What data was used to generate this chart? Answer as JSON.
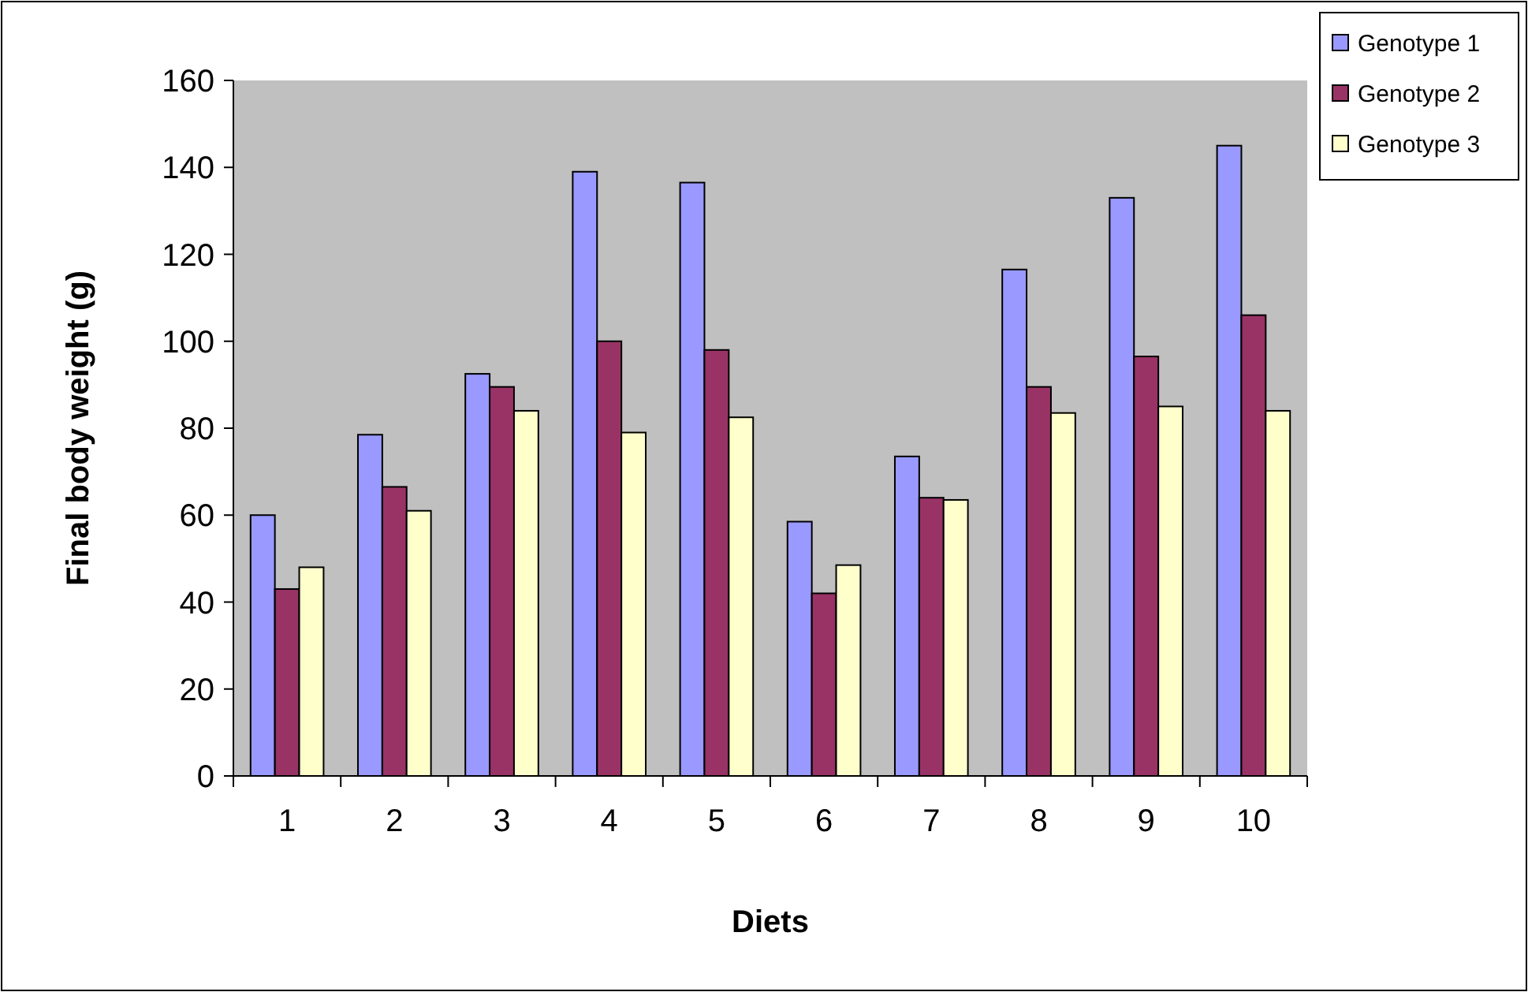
{
  "chart_data": {
    "type": "bar",
    "xlabel": "Diets",
    "ylabel": "Final body weight (g)",
    "categories": [
      "1",
      "2",
      "3",
      "4",
      "5",
      "6",
      "7",
      "8",
      "9",
      "10"
    ],
    "series": [
      {
        "name": "Genotype 1",
        "color": "#9999ff",
        "values": [
          60,
          78.5,
          92.5,
          139,
          136.5,
          58.5,
          73.5,
          116.5,
          133,
          145
        ]
      },
      {
        "name": "Genotype 2",
        "color": "#993366",
        "values": [
          43,
          66.5,
          89.5,
          100,
          98,
          42,
          64,
          89.5,
          96.5,
          106
        ]
      },
      {
        "name": "Genotype 3",
        "color": "#ffffcc",
        "values": [
          48,
          61,
          84,
          79,
          82.5,
          48.5,
          63.5,
          83.5,
          85,
          84
        ]
      }
    ],
    "ylim": [
      0,
      160
    ],
    "yticks": [
      0,
      20,
      40,
      60,
      80,
      100,
      120,
      140,
      160
    ],
    "grid": false,
    "legend": "top right"
  }
}
